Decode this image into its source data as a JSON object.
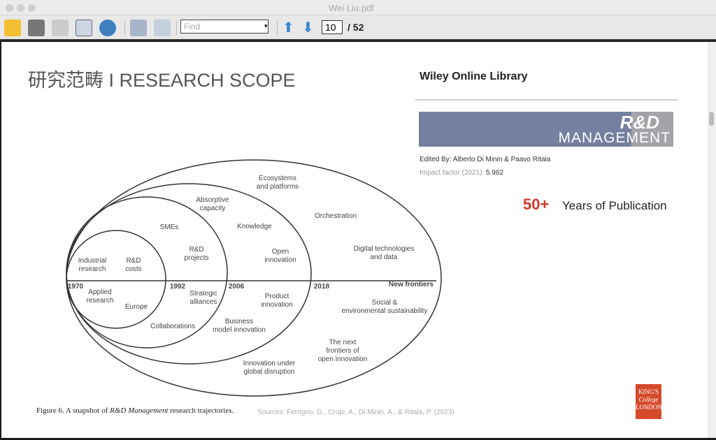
{
  "window": {
    "title": "Wei Liu.pdf"
  },
  "toolbar": {
    "find_placeholder": "Find",
    "page_current": "10",
    "page_total": "/ 52"
  },
  "slide": {
    "title": "研究范畴 I RESEARCH SCOPE",
    "wiley": "Wiley Online Library",
    "banner_rd": "R&D",
    "banner_mgmt": "MANAGEMENT",
    "edited": "Edited By: Alberto Di Minin & Paavo Ritala",
    "impact_label": "Impact factor (2021): ",
    "impact_value": "5.962",
    "fifty": "50+",
    "years": "Years of Publication",
    "caption_a": "Figure 6.  A snapshot of ",
    "caption_b": "R&D Management",
    "caption_c": " research trajectories.",
    "sources": "Sources: Ferrigno, G., Crupi, A., Di Minin, A., & Ritala, P. (2023)",
    "logo": "KING'S College LONDON"
  },
  "diagram": {
    "years": [
      "1970",
      "1992",
      "2006",
      "2018"
    ],
    "new_frontiers": "New frontiers",
    "labels": [
      "Industrial research",
      "R&D costs",
      "SMEs",
      "R&D projects",
      "Absorptive capacity",
      "Knowledge",
      "Open innovation",
      "Ecosystems and platforms",
      "Orchestration",
      "Digital technologies and data",
      "Applied research",
      "Europe",
      "Collaborations",
      "Strategic alliances",
      "Business model innovation",
      "Product innovation",
      "Innovation under global disruption",
      "The next frontiers of open innovation",
      "Social & environmental sustainability"
    ]
  }
}
